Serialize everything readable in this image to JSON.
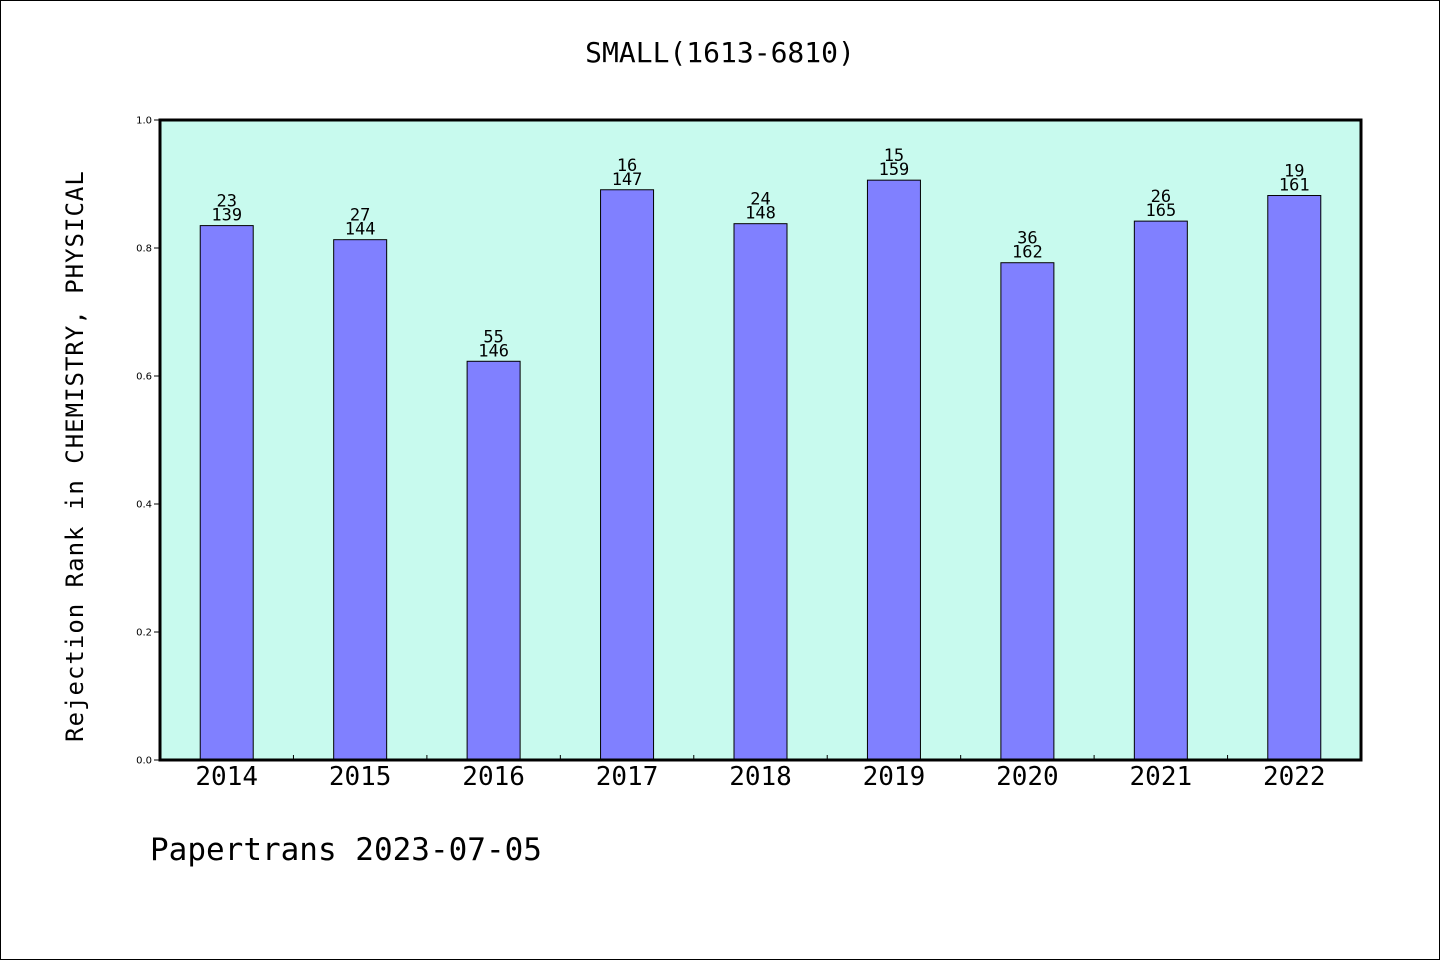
{
  "chart_data": {
    "type": "bar",
    "title": "SMALL(1613-6810)",
    "xlabel": "",
    "ylabel": "Rejection Rank in CHEMISTRY, PHYSICAL",
    "categories": [
      "2014",
      "2015",
      "2016",
      "2017",
      "2018",
      "2019",
      "2020",
      "2021",
      "2022"
    ],
    "values": [
      0.835,
      0.813,
      0.623,
      0.891,
      0.838,
      0.906,
      0.777,
      0.842,
      0.882
    ],
    "rank": [
      "23",
      "27",
      "55",
      "16",
      "24",
      "15",
      "36",
      "26",
      "19"
    ],
    "total": [
      "139",
      "144",
      "146",
      "147",
      "148",
      "159",
      "162",
      "165",
      "161"
    ],
    "ylim": [
      0,
      1.0
    ],
    "yticks": [
      "0.0",
      "0.2",
      "0.4",
      "0.6",
      "0.8",
      "1.0"
    ],
    "grid": false,
    "legend": "none",
    "colors": {
      "plot_background": "#c8faee",
      "bar": "#8080ff"
    }
  },
  "footer": "Papertrans 2023-07-05"
}
